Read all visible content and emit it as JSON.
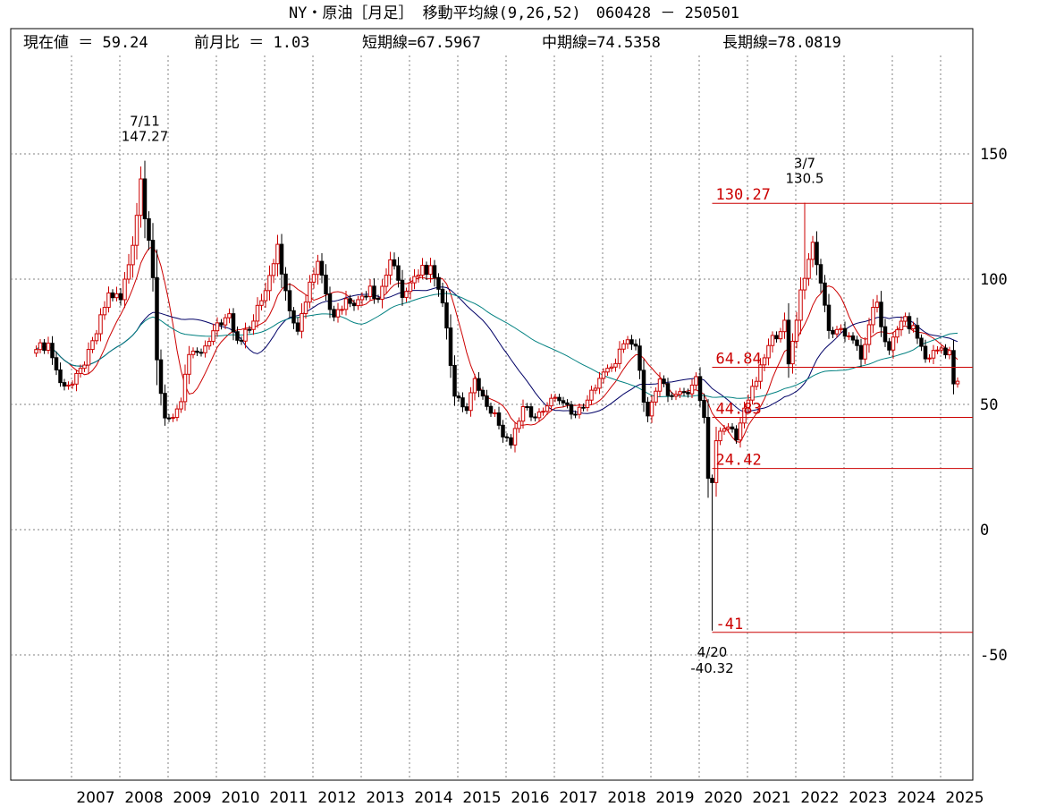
{
  "title": "NY・原油［月足］ 移動平均線(9,26,52)　060428 － 250501",
  "stats": {
    "current_label": "現在値 ＝ 59.24",
    "change_label": "前月比 ＝ 1.03",
    "short_label": "短期線=67.5967",
    "mid_label": "中期線=74.5358",
    "long_label": "長期線=78.0819"
  },
  "colors": {
    "up_candle": "#cc0000",
    "down_candle": "#000000",
    "ma_short": "#cc0000",
    "ma_mid": "#000066",
    "ma_long": "#008080",
    "level_line": "#cc0000",
    "grid": "#808080"
  },
  "chart_data": {
    "type": "candlestick",
    "ylim": [
      -100,
      190
    ],
    "yticks": [
      150,
      100,
      50,
      0,
      -50
    ],
    "ytick_labels": [
      "150",
      "100",
      "50",
      "0",
      "-50"
    ],
    "xtick_labels": [
      "2007",
      "2008",
      "2009",
      "2010",
      "2011",
      "2012",
      "2013",
      "2014",
      "2015",
      "2016",
      "2017",
      "2018",
      "2019",
      "2020",
      "2021",
      "2022",
      "2023",
      "2024",
      "2025"
    ],
    "xrange": [
      "2006-04",
      "2025-05"
    ],
    "grid": true,
    "annotations": [
      {
        "date": "2008-07",
        "lines": [
          "7/11",
          "147.27"
        ]
      },
      {
        "date": "2022-03",
        "lines": [
          "3/7",
          "130.5"
        ]
      },
      {
        "date": "2020-04",
        "lines": [
          "4/20",
          "-40.32"
        ]
      }
    ],
    "levels": [
      {
        "value": 130.27,
        "label": "130.27"
      },
      {
        "value": 64.84,
        "label": "64.84"
      },
      {
        "value": 44.83,
        "label": "44.83"
      },
      {
        "value": 24.42,
        "label": "24.42"
      },
      {
        "value": -41,
        "label": "-41"
      }
    ],
    "levels_start_date": "2020-04",
    "series": [
      {
        "name": "短期線",
        "period": 9
      },
      {
        "name": "中期線",
        "period": 26
      },
      {
        "name": "長期線",
        "period": 52
      }
    ],
    "anchors": [
      {
        "date": "2006-04",
        "close": 71.9
      },
      {
        "date": "2006-07",
        "close": 74.4
      },
      {
        "date": "2006-10",
        "close": 58.7
      },
      {
        "date": "2007-01",
        "close": 58.1
      },
      {
        "date": "2007-04",
        "close": 65.7
      },
      {
        "date": "2007-07",
        "close": 78.2
      },
      {
        "date": "2007-10",
        "close": 94.5
      },
      {
        "date": "2008-01",
        "close": 91.8
      },
      {
        "date": "2008-04",
        "close": 113.5
      },
      {
        "date": "2008-06",
        "close": 140.0
      },
      {
        "date": "2008-07",
        "close": 124.1
      },
      {
        "date": "2008-08",
        "close": 115.5
      },
      {
        "date": "2008-09",
        "close": 100.6
      },
      {
        "date": "2008-10",
        "close": 67.8
      },
      {
        "date": "2008-11",
        "close": 54.4
      },
      {
        "date": "2008-12",
        "close": 44.6
      },
      {
        "date": "2009-02",
        "close": 44.8
      },
      {
        "date": "2009-04",
        "close": 51.1
      },
      {
        "date": "2009-06",
        "close": 69.9
      },
      {
        "date": "2009-09",
        "close": 70.6
      },
      {
        "date": "2009-12",
        "close": 79.4
      },
      {
        "date": "2010-04",
        "close": 86.2
      },
      {
        "date": "2010-06",
        "close": 75.6
      },
      {
        "date": "2010-09",
        "close": 79.9
      },
      {
        "date": "2010-12",
        "close": 91.4
      },
      {
        "date": "2011-04",
        "close": 113.9
      },
      {
        "date": "2011-06",
        "close": 95.4
      },
      {
        "date": "2011-09",
        "close": 79.2
      },
      {
        "date": "2011-12",
        "close": 98.8
      },
      {
        "date": "2012-02",
        "close": 107.1
      },
      {
        "date": "2012-06",
        "close": 84.9
      },
      {
        "date": "2012-09",
        "close": 92.2
      },
      {
        "date": "2012-12",
        "close": 91.8
      },
      {
        "date": "2013-03",
        "close": 97.2
      },
      {
        "date": "2013-05",
        "close": 91.97
      },
      {
        "date": "2013-08",
        "close": 107.7
      },
      {
        "date": "2013-11",
        "close": 92.7
      },
      {
        "date": "2014-03",
        "close": 101.6
      },
      {
        "date": "2014-06",
        "close": 105.4
      },
      {
        "date": "2014-08",
        "close": 95.96
      },
      {
        "date": "2014-10",
        "close": 80.5
      },
      {
        "date": "2014-12",
        "close": 53.3
      },
      {
        "date": "2015-03",
        "close": 47.6
      },
      {
        "date": "2015-05",
        "close": 60.3
      },
      {
        "date": "2015-08",
        "close": 49.2
      },
      {
        "date": "2015-10",
        "close": 46.6
      },
      {
        "date": "2015-12",
        "close": 37.0
      },
      {
        "date": "2016-02",
        "close": 33.8
      },
      {
        "date": "2016-05",
        "close": 49.1
      },
      {
        "date": "2016-08",
        "close": 44.7
      },
      {
        "date": "2016-11",
        "close": 49.4
      },
      {
        "date": "2017-01",
        "close": 52.8
      },
      {
        "date": "2017-03",
        "close": 50.6
      },
      {
        "date": "2017-06",
        "close": 46.0
      },
      {
        "date": "2017-09",
        "close": 51.7
      },
      {
        "date": "2017-12",
        "close": 60.4
      },
      {
        "date": "2018-03",
        "close": 64.9
      },
      {
        "date": "2018-06",
        "close": 74.2
      },
      {
        "date": "2018-09",
        "close": 73.3
      },
      {
        "date": "2018-11",
        "close": 50.9
      },
      {
        "date": "2018-12",
        "close": 45.4
      },
      {
        "date": "2019-03",
        "close": 60.1
      },
      {
        "date": "2019-05",
        "close": 53.5
      },
      {
        "date": "2019-08",
        "close": 55.1
      },
      {
        "date": "2019-10",
        "close": 54.2
      },
      {
        "date": "2019-12",
        "close": 61.1
      },
      {
        "date": "2020-01",
        "close": 51.6
      },
      {
        "date": "2020-02",
        "close": 44.8
      },
      {
        "date": "2020-03",
        "close": 20.5
      },
      {
        "date": "2020-04",
        "close": 18.8
      },
      {
        "date": "2020-05",
        "close": 35.5
      },
      {
        "date": "2020-06",
        "close": 39.3
      },
      {
        "date": "2020-09",
        "close": 40.2
      },
      {
        "date": "2020-10",
        "close": 35.8
      },
      {
        "date": "2020-12",
        "close": 48.5
      },
      {
        "date": "2021-03",
        "close": 59.2
      },
      {
        "date": "2021-06",
        "close": 73.5
      },
      {
        "date": "2021-10",
        "close": 83.6
      },
      {
        "date": "2021-11",
        "close": 66.2
      },
      {
        "date": "2021-12",
        "close": 75.2
      },
      {
        "date": "2022-02",
        "close": 95.7
      },
      {
        "date": "2022-03",
        "close": 100.3
      },
      {
        "date": "2022-05",
        "close": 114.7
      },
      {
        "date": "2022-06",
        "close": 105.8
      },
      {
        "date": "2022-08",
        "close": 89.6
      },
      {
        "date": "2022-09",
        "close": 79.5
      },
      {
        "date": "2022-12",
        "close": 80.3
      },
      {
        "date": "2023-03",
        "close": 75.7
      },
      {
        "date": "2023-05",
        "close": 68.1
      },
      {
        "date": "2023-07",
        "close": 81.8
      },
      {
        "date": "2023-09",
        "close": 90.8
      },
      {
        "date": "2023-10",
        "close": 81.0
      },
      {
        "date": "2023-12",
        "close": 71.7
      },
      {
        "date": "2024-03",
        "close": 83.2
      },
      {
        "date": "2024-06",
        "close": 81.5
      },
      {
        "date": "2024-09",
        "close": 68.2
      },
      {
        "date": "2024-12",
        "close": 71.7
      },
      {
        "date": "2025-01",
        "close": 72.5
      },
      {
        "date": "2025-02",
        "close": 69.8
      },
      {
        "date": "2025-03",
        "close": 71.5
      },
      {
        "date": "2025-04",
        "close": 58.2
      },
      {
        "date": "2025-05",
        "close": 59.24
      }
    ],
    "extremes": [
      {
        "date": "2008-07",
        "high": 147.27
      },
      {
        "date": "2022-03",
        "high": 130.5
      },
      {
        "date": "2020-04",
        "low": -40.32
      }
    ]
  }
}
